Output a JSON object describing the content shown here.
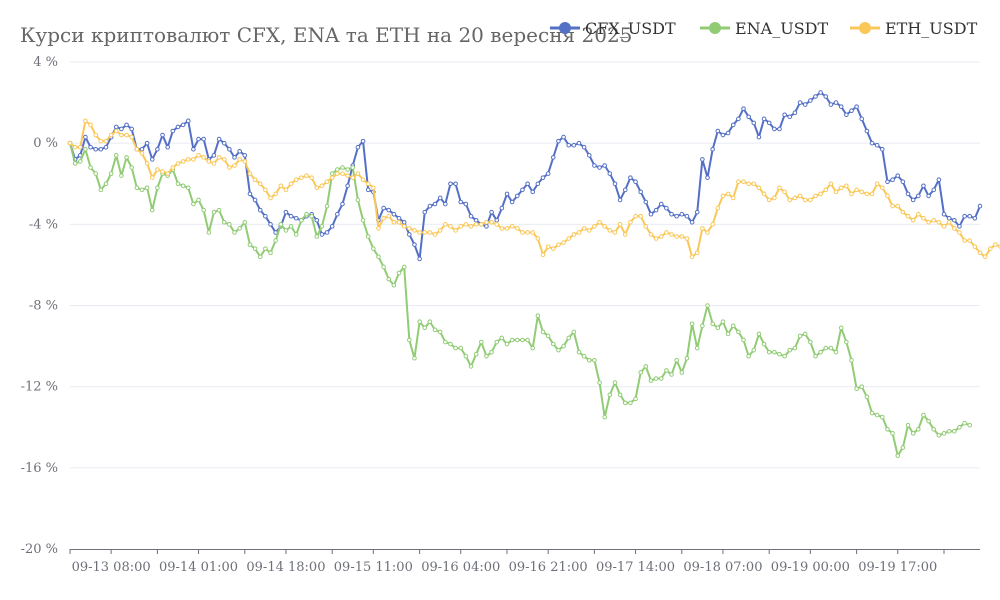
{
  "chart_data": {
    "type": "line",
    "title": "Курси криптовалют CFX, ENA та ETH на 20 вересня 2025",
    "xlabel": "",
    "ylabel": "",
    "ylim": [
      -20,
      4
    ],
    "yticks": [
      4,
      0,
      -4,
      -8,
      -12,
      -16,
      -20
    ],
    "ytick_format": "{v} %",
    "x_range": [
      "09-13 00:00",
      "09-20 07:00"
    ],
    "x_step_hours": 1,
    "xtick_labels": [
      "09-13 08:00",
      "09-14 01:00",
      "09-14 18:00",
      "09-15 11:00",
      "09-16 04:00",
      "09-16 21:00",
      "09-17 14:00",
      "09-18 07:00",
      "09-19 00:00",
      "09-19 17:00"
    ],
    "xtick_step_hours": 17,
    "grid": true,
    "legend_position": "top-right",
    "series": [
      {
        "name": "CFX_USDT",
        "color": "#5470c6",
        "values": [
          0.0,
          -0.8,
          -0.6,
          0.3,
          -0.2,
          -0.3,
          -0.3,
          -0.2,
          0.3,
          0.8,
          0.7,
          0.9,
          0.7,
          -0.3,
          -0.3,
          0.0,
          -0.8,
          -0.3,
          0.4,
          -0.2,
          0.6,
          0.8,
          0.9,
          1.1,
          -0.3,
          0.2,
          0.2,
          -0.8,
          -0.6,
          0.2,
          0.0,
          -0.3,
          -0.7,
          -0.4,
          -0.6,
          -2.5,
          -2.8,
          -3.3,
          -3.6,
          -4.0,
          -4.4,
          -4.1,
          -3.4,
          -3.6,
          -3.7,
          -3.8,
          -3.6,
          -3.5,
          -3.8,
          -4.5,
          -4.4,
          -4.1,
          -3.5,
          -3.0,
          -2.1,
          -1.1,
          -0.2,
          0.1,
          -2.3,
          -2.4,
          -3.8,
          -3.2,
          -3.3,
          -3.5,
          -3.7,
          -3.9,
          -4.5,
          -5.0,
          -5.7,
          -3.4,
          -3.1,
          -3.0,
          -2.7,
          -3.0,
          -2.0,
          -2.0,
          -2.9,
          -3.0,
          -3.6,
          -3.8,
          -4.0,
          -4.1,
          -3.4,
          -3.8,
          -3.2,
          -2.5,
          -2.9,
          -2.6,
          -2.3,
          -2.0,
          -2.4,
          -2.0,
          -1.7,
          -1.5,
          -0.7,
          0.1,
          0.3,
          -0.1,
          -0.1,
          0.0,
          -0.2,
          -0.6,
          -1.1,
          -1.2,
          -1.1,
          -1.5,
          -2.0,
          -2.8,
          -2.3,
          -1.7,
          -1.9,
          -2.4,
          -2.9,
          -3.5,
          -3.3,
          -3.0,
          -3.2,
          -3.5,
          -3.6,
          -3.5,
          -3.6,
          -3.9,
          -3.4,
          -0.8,
          -1.7,
          -0.3,
          0.6,
          0.4,
          0.5,
          0.9,
          1.2,
          1.7,
          1.3,
          1.0,
          0.3,
          1.2,
          1.0,
          0.7,
          0.7,
          1.4,
          1.3,
          1.5,
          2.0,
          1.9,
          2.1,
          2.3,
          2.5,
          2.3,
          1.9,
          2.0,
          1.8,
          1.4,
          1.6,
          1.8,
          1.2,
          0.6,
          0.0,
          -0.1,
          -0.3,
          -1.9,
          -1.8,
          -1.6,
          -1.9,
          -2.5,
          -2.8,
          -2.6,
          -2.1,
          -2.6,
          -2.3,
          -1.8,
          -3.5,
          -3.7,
          -3.8,
          -4.1,
          -3.6,
          -3.6,
          -3.7,
          -3.1
        ]
      },
      {
        "name": "ENA_USDT",
        "color": "#91cc75",
        "values": [
          0.0,
          -1.0,
          -0.9,
          -0.3,
          -1.2,
          -1.5,
          -2.3,
          -2.0,
          -1.5,
          -0.6,
          -1.6,
          -0.7,
          -1.2,
          -2.2,
          -2.3,
          -2.2,
          -3.3,
          -2.2,
          -1.5,
          -1.6,
          -1.3,
          -2.0,
          -2.1,
          -2.2,
          -3.0,
          -2.8,
          -3.3,
          -4.4,
          -3.4,
          -3.3,
          -3.9,
          -4.0,
          -4.4,
          -4.2,
          -3.9,
          -5.0,
          -5.2,
          -5.6,
          -5.2,
          -5.4,
          -4.8,
          -4.0,
          -4.3,
          -4.1,
          -4.5,
          -3.8,
          -3.5,
          -3.6,
          -4.6,
          -4.1,
          -3.1,
          -1.5,
          -1.3,
          -1.2,
          -1.3,
          -1.2,
          -2.8,
          -3.8,
          -4.6,
          -5.2,
          -5.6,
          -6.1,
          -6.7,
          -7.0,
          -6.4,
          -6.1,
          -9.7,
          -10.6,
          -8.8,
          -9.1,
          -8.8,
          -9.2,
          -9.3,
          -9.8,
          -9.9,
          -10.1,
          -10.1,
          -10.5,
          -11.0,
          -10.4,
          -9.8,
          -10.5,
          -10.3,
          -9.8,
          -9.6,
          -9.9,
          -9.7,
          -9.7,
          -9.7,
          -9.7,
          -10.1,
          -8.5,
          -9.3,
          -9.5,
          -9.9,
          -10.2,
          -10.0,
          -9.6,
          -9.3,
          -10.3,
          -10.5,
          -10.7,
          -10.7,
          -11.8,
          -13.5,
          -12.4,
          -11.8,
          -12.4,
          -12.8,
          -12.8,
          -12.6,
          -11.3,
          -11.0,
          -11.7,
          -11.6,
          -11.6,
          -11.2,
          -11.4,
          -10.7,
          -11.3,
          -10.6,
          -8.9,
          -10.1,
          -9.0,
          -8.0,
          -8.9,
          -9.1,
          -8.8,
          -9.4,
          -9.0,
          -9.3,
          -9.7,
          -10.5,
          -10.2,
          -9.4,
          -9.9,
          -10.3,
          -10.3,
          -10.4,
          -10.5,
          -10.2,
          -10.1,
          -9.5,
          -9.4,
          -9.8,
          -10.5,
          -10.3,
          -10.1,
          -10.1,
          -10.3,
          -9.1,
          -9.8,
          -10.7,
          -12.1,
          -12.0,
          -12.5,
          -13.3,
          -13.4,
          -13.5,
          -14.1,
          -14.3,
          -15.4,
          -15.0,
          -13.9,
          -14.3,
          -14.1,
          -13.4,
          -13.7,
          -14.1,
          -14.4,
          -14.3,
          -14.2,
          -14.2,
          -14.0,
          -13.8,
          -13.9
        ]
      },
      {
        "name": "ETH_USDT",
        "color": "#fac858",
        "values": [
          0.0,
          -0.2,
          -0.2,
          1.1,
          0.9,
          0.4,
          0.1,
          0.1,
          0.4,
          0.6,
          0.4,
          0.4,
          0.3,
          -0.3,
          -0.5,
          -1.0,
          -1.7,
          -1.3,
          -1.4,
          -1.5,
          -1.2,
          -1.0,
          -0.9,
          -0.8,
          -0.8,
          -0.6,
          -0.7,
          -0.9,
          -1.0,
          -0.7,
          -0.8,
          -1.2,
          -1.1,
          -0.8,
          -0.9,
          -1.5,
          -1.8,
          -2.0,
          -2.3,
          -2.7,
          -2.5,
          -2.1,
          -2.3,
          -2.0,
          -1.8,
          -1.7,
          -1.6,
          -1.7,
          -2.2,
          -2.1,
          -1.9,
          -1.7,
          -1.5,
          -1.5,
          -1.6,
          -1.7,
          -1.5,
          -1.8,
          -2.0,
          -2.2,
          -4.2,
          -3.7,
          -3.6,
          -3.9,
          -3.9,
          -4.1,
          -4.2,
          -4.3,
          -4.4,
          -4.4,
          -4.4,
          -4.5,
          -4.3,
          -4.0,
          -4.1,
          -4.3,
          -4.1,
          -4.0,
          -4.1,
          -4.0,
          -4.0,
          -3.9,
          -3.9,
          -4.0,
          -4.2,
          -4.2,
          -4.1,
          -4.2,
          -4.4,
          -4.4,
          -4.4,
          -4.7,
          -5.5,
          -5.1,
          -5.2,
          -5.0,
          -4.9,
          -4.7,
          -4.5,
          -4.4,
          -4.2,
          -4.3,
          -4.1,
          -3.9,
          -4.1,
          -4.3,
          -4.4,
          -4.0,
          -4.5,
          -3.9,
          -3.6,
          -3.6,
          -4.1,
          -4.5,
          -4.7,
          -4.6,
          -4.4,
          -4.5,
          -4.6,
          -4.6,
          -4.7,
          -5.6,
          -5.4,
          -4.2,
          -4.4,
          -4.0,
          -3.2,
          -2.6,
          -2.5,
          -2.7,
          -1.9,
          -1.9,
          -2.0,
          -2.0,
          -2.2,
          -2.5,
          -2.8,
          -2.7,
          -2.2,
          -2.4,
          -2.8,
          -2.7,
          -2.6,
          -2.8,
          -2.8,
          -2.6,
          -2.5,
          -2.3,
          -2.0,
          -2.4,
          -2.2,
          -2.1,
          -2.5,
          -2.3,
          -2.4,
          -2.5,
          -2.5,
          -2.0,
          -2.2,
          -2.6,
          -3.1,
          -3.1,
          -3.4,
          -3.6,
          -3.8,
          -3.5,
          -3.7,
          -3.9,
          -3.8,
          -3.9,
          -4.1,
          -3.9,
          -4.2,
          -4.4,
          -4.8,
          -4.8,
          -5.1,
          -5.4,
          -5.6,
          -5.2,
          -5.0,
          -5.1,
          -5.0,
          -4.9
        ]
      }
    ]
  }
}
